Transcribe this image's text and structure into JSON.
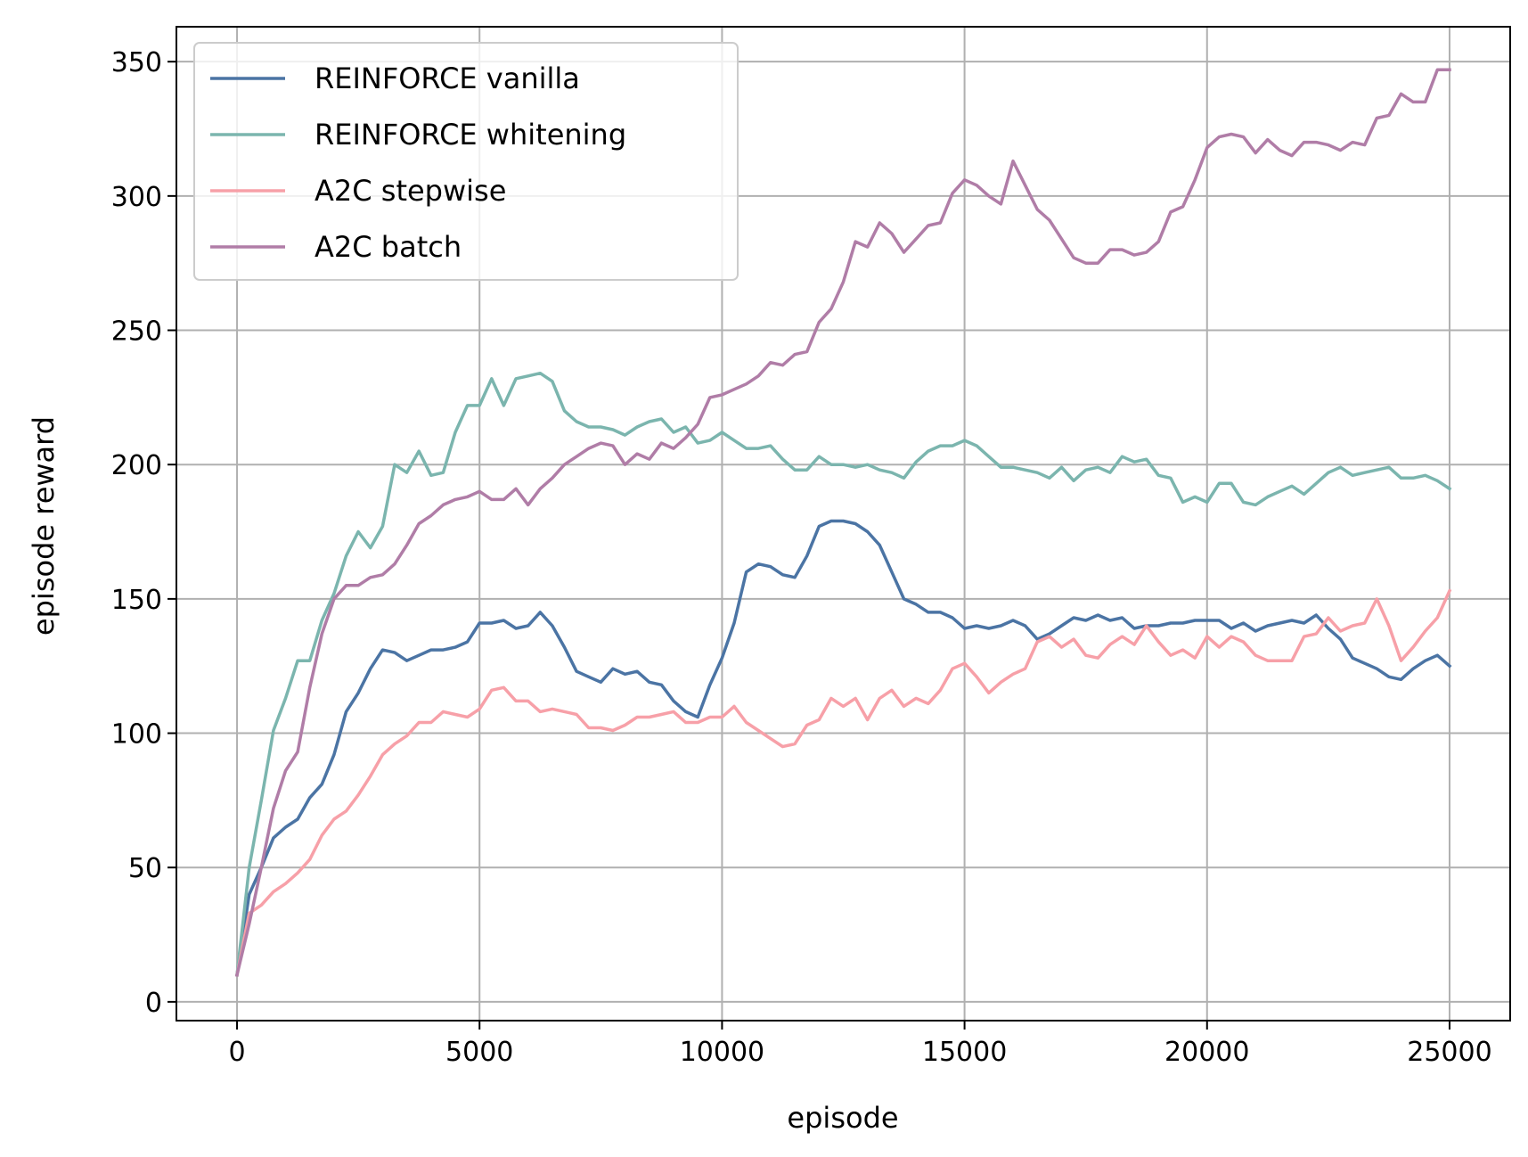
{
  "chart_data": {
    "type": "line",
    "title": "",
    "xlabel": "episode",
    "ylabel": "episode reward",
    "xlim": [
      -1250,
      26250
    ],
    "ylim": [
      -7,
      363
    ],
    "xticks": [
      0,
      5000,
      10000,
      15000,
      20000,
      25000
    ],
    "yticks": [
      0,
      50,
      100,
      150,
      200,
      250,
      300,
      350
    ],
    "grid": true,
    "legend_position": "top-left",
    "series": [
      {
        "name": "REINFORCE vanilla",
        "color": "#4b74a4",
        "x": [
          0,
          250,
          500,
          750,
          1000,
          1250,
          1500,
          1750,
          2000,
          2250,
          2500,
          2750,
          3000,
          3250,
          3500,
          3750,
          4000,
          4250,
          4500,
          4750,
          5000,
          5250,
          5500,
          5750,
          6000,
          6250,
          6500,
          6750,
          7000,
          7250,
          7500,
          7750,
          8000,
          8250,
          8500,
          8750,
          9000,
          9250,
          9500,
          9750,
          10000,
          10250,
          10500,
          10750,
          11000,
          11250,
          11500,
          11750,
          12000,
          12250,
          12500,
          12750,
          13000,
          13250,
          13500,
          13750,
          14000,
          14250,
          14500,
          14750,
          15000,
          15250,
          15500,
          15750,
          16000,
          16250,
          16500,
          16750,
          17000,
          17250,
          17500,
          17750,
          18000,
          18250,
          18500,
          18750,
          19000,
          19250,
          19500,
          19750,
          20000,
          20250,
          20500,
          20750,
          21000,
          21250,
          21500,
          21750,
          22000,
          22250,
          22500,
          22750,
          23000,
          23250,
          23500,
          23750,
          24000,
          24250,
          24500,
          24750,
          25000
        ],
        "y": [
          10,
          40,
          50,
          61,
          65,
          68,
          76,
          81,
          92,
          108,
          115,
          124,
          131,
          130,
          127,
          129,
          131,
          131,
          132,
          134,
          141,
          141,
          142,
          139,
          140,
          145,
          140,
          132,
          123,
          121,
          119,
          124,
          122,
          123,
          119,
          118,
          112,
          108,
          106,
          118,
          128,
          141,
          160,
          163,
          162,
          159,
          158,
          166,
          177,
          179,
          179,
          178,
          175,
          170,
          160,
          150,
          148,
          145,
          145,
          143,
          139,
          140,
          139,
          140,
          142,
          140,
          135,
          137,
          140,
          143,
          142,
          144,
          142,
          143,
          139,
          140,
          140,
          141,
          141,
          142,
          142,
          142,
          139,
          141,
          138,
          140,
          141,
          142,
          141,
          144,
          139,
          135,
          128,
          126,
          124,
          121,
          120,
          124,
          127,
          129,
          125
        ]
      },
      {
        "name": "REINFORCE whitening",
        "color": "#7bb5ae",
        "x": [
          0,
          250,
          500,
          750,
          1000,
          1250,
          1500,
          1750,
          2000,
          2250,
          2500,
          2750,
          3000,
          3250,
          3500,
          3750,
          4000,
          4250,
          4500,
          4750,
          5000,
          5250,
          5500,
          5750,
          6000,
          6250,
          6500,
          6750,
          7000,
          7250,
          7500,
          7750,
          8000,
          8250,
          8500,
          8750,
          9000,
          9250,
          9500,
          9750,
          10000,
          10250,
          10500,
          10750,
          11000,
          11250,
          11500,
          11750,
          12000,
          12250,
          12500,
          12750,
          13000,
          13250,
          13500,
          13750,
          14000,
          14250,
          14500,
          14750,
          15000,
          15250,
          15500,
          15750,
          16000,
          16250,
          16500,
          16750,
          17000,
          17250,
          17500,
          17750,
          18000,
          18250,
          18500,
          18750,
          19000,
          19250,
          19500,
          19750,
          20000,
          20250,
          20500,
          20750,
          21000,
          21250,
          21500,
          21750,
          22000,
          22250,
          22500,
          22750,
          23000,
          23250,
          23500,
          23750,
          24000,
          24250,
          24500,
          24750,
          25000
        ],
        "y": [
          10,
          50,
          75,
          101,
          113,
          127,
          127,
          142,
          152,
          166,
          175,
          169,
          177,
          200,
          197,
          205,
          196,
          197,
          212,
          222,
          222,
          232,
          222,
          232,
          233,
          234,
          231,
          220,
          216,
          214,
          214,
          213,
          211,
          214,
          216,
          217,
          212,
          214,
          208,
          209,
          212,
          209,
          206,
          206,
          207,
          202,
          198,
          198,
          203,
          200,
          200,
          199,
          200,
          198,
          197,
          195,
          201,
          205,
          207,
          207,
          209,
          207,
          203,
          199,
          199,
          198,
          197,
          195,
          199,
          194,
          198,
          199,
          197,
          203,
          201,
          202,
          196,
          195,
          186,
          188,
          186,
          193,
          193,
          186,
          185,
          188,
          190,
          192,
          189,
          193,
          197,
          199,
          196,
          197,
          198,
          199,
          195,
          195,
          196,
          194,
          191
        ]
      },
      {
        "name": "A2C stepwise",
        "color": "#f7a0a8",
        "x": [
          0,
          250,
          500,
          750,
          1000,
          1250,
          1500,
          1750,
          2000,
          2250,
          2500,
          2750,
          3000,
          3250,
          3500,
          3750,
          4000,
          4250,
          4500,
          4750,
          5000,
          5250,
          5500,
          5750,
          6000,
          6250,
          6500,
          6750,
          7000,
          7250,
          7500,
          7750,
          8000,
          8250,
          8500,
          8750,
          9000,
          9250,
          9500,
          9750,
          10000,
          10250,
          10500,
          10750,
          11000,
          11250,
          11500,
          11750,
          12000,
          12250,
          12500,
          12750,
          13000,
          13250,
          13500,
          13750,
          14000,
          14250,
          14500,
          14750,
          15000,
          15250,
          15500,
          15750,
          16000,
          16250,
          16500,
          16750,
          17000,
          17250,
          17500,
          17750,
          18000,
          18250,
          18500,
          18750,
          19000,
          19250,
          19500,
          19750,
          20000,
          20250,
          20500,
          20750,
          21000,
          21250,
          21500,
          21750,
          22000,
          22250,
          22500,
          22750,
          23000,
          23250,
          23500,
          23750,
          24000,
          24250,
          24500,
          24750,
          25000
        ],
        "y": [
          10,
          33,
          36,
          41,
          44,
          48,
          53,
          62,
          68,
          71,
          77,
          84,
          92,
          96,
          99,
          104,
          104,
          108,
          107,
          106,
          109,
          116,
          117,
          112,
          112,
          108,
          109,
          108,
          107,
          102,
          102,
          101,
          103,
          106,
          106,
          107,
          108,
          104,
          104,
          106,
          106,
          110,
          104,
          101,
          98,
          95,
          96,
          103,
          105,
          113,
          110,
          113,
          105,
          113,
          116,
          110,
          113,
          111,
          116,
          124,
          126,
          121,
          115,
          119,
          122,
          124,
          134,
          136,
          132,
          135,
          129,
          128,
          133,
          136,
          133,
          140,
          134,
          129,
          131,
          128,
          136,
          132,
          136,
          134,
          129,
          127,
          127,
          127,
          136,
          137,
          143,
          138,
          140,
          141,
          150,
          140,
          127,
          132,
          138,
          143,
          153
        ]
      },
      {
        "name": "A2C batch",
        "color": "#b07da7",
        "x": [
          0,
          250,
          500,
          750,
          1000,
          1250,
          1500,
          1750,
          2000,
          2250,
          2500,
          2750,
          3000,
          3250,
          3500,
          3750,
          4000,
          4250,
          4500,
          4750,
          5000,
          5250,
          5500,
          5750,
          6000,
          6250,
          6500,
          6750,
          7000,
          7250,
          7500,
          7750,
          8000,
          8250,
          8500,
          8750,
          9000,
          9250,
          9500,
          9750,
          10000,
          10250,
          10500,
          10750,
          11000,
          11250,
          11500,
          11750,
          12000,
          12250,
          12500,
          12750,
          13000,
          13250,
          13500,
          13750,
          14000,
          14250,
          14500,
          14750,
          15000,
          15250,
          15500,
          15750,
          16000,
          16250,
          16500,
          16750,
          17000,
          17250,
          17500,
          17750,
          18000,
          18250,
          18500,
          18750,
          19000,
          19250,
          19500,
          19750,
          20000,
          20250,
          20500,
          20750,
          21000,
          21250,
          21500,
          21750,
          22000,
          22250,
          22500,
          22750,
          23000,
          23250,
          23500,
          23750,
          24000,
          24250,
          24500,
          24750,
          25000
        ],
        "y": [
          10,
          29,
          50,
          72,
          86,
          93,
          117,
          137,
          150,
          155,
          155,
          158,
          159,
          163,
          170,
          178,
          181,
          185,
          187,
          188,
          190,
          187,
          187,
          191,
          185,
          191,
          195,
          200,
          203,
          206,
          208,
          207,
          200,
          204,
          202,
          208,
          206,
          210,
          215,
          225,
          226,
          228,
          230,
          233,
          238,
          237,
          241,
          242,
          253,
          258,
          268,
          283,
          281,
          290,
          286,
          279,
          284,
          289,
          290,
          301,
          306,
          304,
          300,
          297,
          313,
          304,
          295,
          291,
          284,
          277,
          275,
          275,
          280,
          280,
          278,
          279,
          283,
          294,
          296,
          306,
          318,
          322,
          323,
          322,
          316,
          321,
          317,
          315,
          320,
          320,
          319,
          317,
          320,
          319,
          329,
          330,
          338,
          335,
          335,
          347,
          347
        ]
      }
    ]
  }
}
